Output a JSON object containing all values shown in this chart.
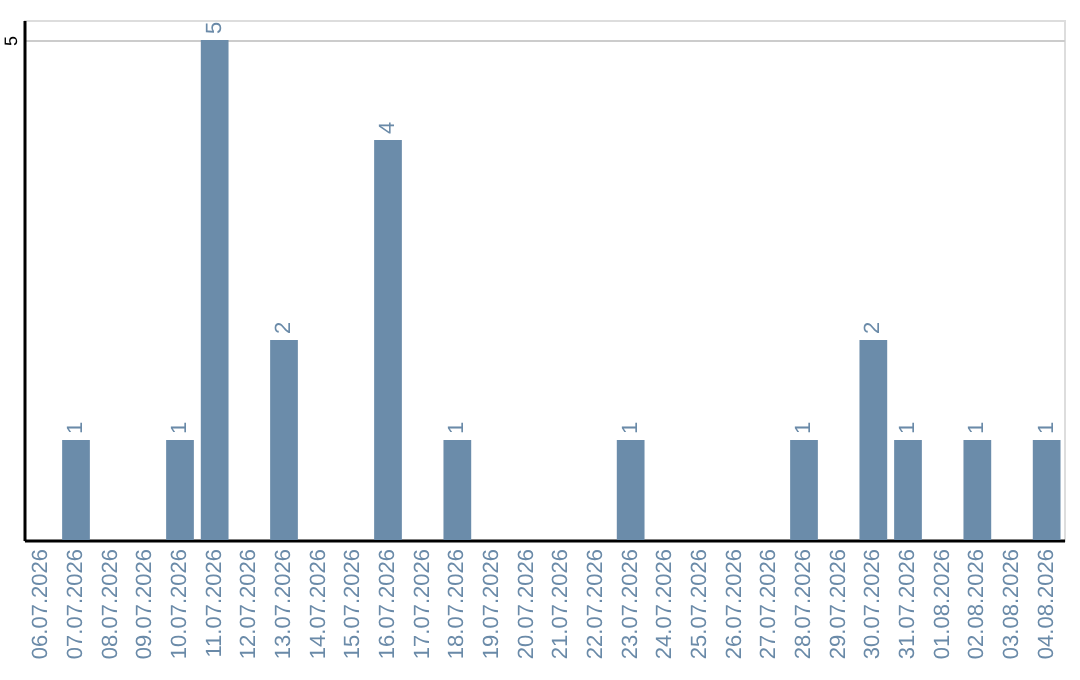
{
  "chart_data": {
    "type": "bar",
    "categories": [
      "06.07.2026",
      "07.07.2026",
      "08.07.2026",
      "09.07.2026",
      "10.07.2026",
      "11.07.2026",
      "12.07.2026",
      "13.07.2026",
      "14.07.2026",
      "15.07.2026",
      "16.07.2026",
      "17.07.2026",
      "18.07.2026",
      "19.07.2026",
      "20.07.2026",
      "21.07.2026",
      "22.07.2026",
      "23.07.2026",
      "24.07.2026",
      "25.07.2026",
      "26.07.2026",
      "27.07.2026",
      "28.07.2026",
      "29.07.2026",
      "30.07.2026",
      "31.07.2026",
      "01.08.2026",
      "02.08.2026",
      "03.08.2026",
      "04.08.2026"
    ],
    "values": [
      0,
      1,
      0,
      0,
      1,
      5,
      0,
      2,
      0,
      0,
      4,
      0,
      1,
      0,
      0,
      0,
      0,
      1,
      0,
      0,
      0,
      0,
      1,
      0,
      2,
      1,
      0,
      1,
      0,
      1
    ],
    "value_labels": [
      null,
      "1",
      null,
      null,
      "1",
      "5",
      null,
      "2",
      null,
      null,
      "4",
      null,
      "1",
      null,
      null,
      null,
      null,
      "1",
      null,
      null,
      null,
      null,
      "1",
      null,
      "2",
      "1",
      null,
      "1",
      null,
      "1"
    ],
    "color": "#6b8caa",
    "ylim": [
      0,
      5.2
    ],
    "yticks": [
      5
    ],
    "grid": "y"
  }
}
